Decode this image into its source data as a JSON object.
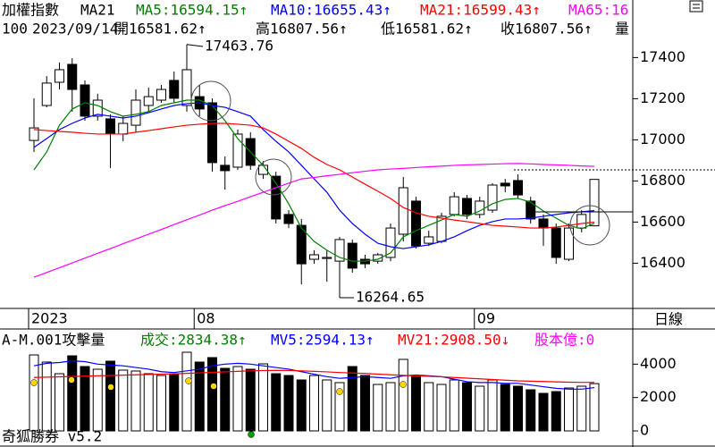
{
  "header": {
    "footer": "奇狐勝券 v5.2",
    "period": "日線"
  },
  "chart_data": [
    {
      "type": "candlestick",
      "title": "加權指數",
      "indicator": "MA21",
      "info": [
        "100",
        "2023/09/14",
        "開16581.62↑",
        "高16807.56↑",
        "低16581.62↑",
        "收16807.56↑",
        "量"
      ],
      "categories": [
        "2023",
        null,
        null,
        null,
        null,
        null,
        null,
        null,
        null,
        null,
        null,
        null,
        null,
        "08",
        null,
        null,
        null,
        null,
        null,
        null,
        null,
        null,
        null,
        null,
        null,
        null,
        null,
        null,
        null,
        null,
        null,
        null,
        null,
        null,
        null,
        "09",
        null,
        null,
        null,
        null,
        null,
        null,
        null,
        null,
        null
      ],
      "open": [
        16997,
        17167,
        17280,
        17367,
        17267,
        17115,
        17102,
        17028,
        17071,
        17167,
        17193,
        17289,
        17167,
        17210,
        17180,
        16876,
        16867,
        17006,
        16832,
        16823,
        16637,
        16584,
        16419,
        16423,
        16410,
        16497,
        16419,
        16410,
        16428,
        16541,
        16702,
        16497,
        16506,
        16637,
        16715,
        16637,
        16658,
        16789,
        16802,
        16702,
        16615,
        16571,
        16419,
        16571,
        16581.62
      ],
      "high": [
        17202,
        17310,
        17376,
        17397,
        17289,
        17224,
        17124,
        17115,
        17245,
        17254,
        17267,
        17332,
        17463.76,
        17267,
        17202,
        16919,
        17050,
        17037,
        16897,
        16845,
        16658,
        16615,
        16463,
        16463,
        16528,
        16515,
        16441,
        16450,
        16593,
        16819,
        16723,
        16558,
        16645,
        16745,
        16732,
        16723,
        16789,
        16810,
        16832,
        16723,
        16637,
        16593,
        16593,
        16658,
        16807.56
      ],
      "low": [
        16941,
        17158,
        17245,
        17137,
        17093,
        17093,
        16863,
        16993,
        17037,
        17137,
        17180,
        17180,
        17137,
        17115,
        16845,
        16758,
        16854,
        16854,
        16810,
        16593,
        16571,
        16297,
        16397,
        16310,
        16264.65,
        16354,
        16376,
        16397,
        16410,
        16506,
        16471,
        16484,
        16497,
        16628,
        16615,
        16619,
        16645,
        16745,
        16715,
        16593,
        16484,
        16397,
        16410,
        16550,
        16581.62
      ],
      "close": [
        17058,
        17276,
        17341,
        17245,
        17115,
        17193,
        17028,
        17080,
        17193,
        17210,
        17245,
        17202,
        17341,
        17150,
        16889,
        16850,
        17028,
        16876,
        16876,
        16615,
        16593,
        16397,
        16441,
        16428,
        16515,
        16376,
        16397,
        16441,
        16571,
        16767,
        16484,
        16528,
        16628,
        16723,
        16637,
        16702,
        16780,
        16776,
        16732,
        16615,
        16571,
        16428,
        16571,
        16637,
        16807.56
      ],
      "series": [
        {
          "name": "MA5:16594.15↑",
          "color": "#008000",
          "values": [
            16854,
            16941,
            17071,
            17150,
            17180,
            17167,
            17137,
            17115,
            17124,
            17137,
            17167,
            17180,
            17193,
            17193,
            17167,
            17093,
            17006,
            16941,
            16876,
            16789,
            16689,
            16571,
            16506,
            16463,
            16428,
            16410,
            16410,
            16419,
            16450,
            16528,
            16558,
            16584,
            16610,
            16637,
            16628,
            16654,
            16689,
            16710,
            16715,
            16697,
            16654,
            16619,
            16584,
            16567,
            16594.15
          ]
        },
        {
          "name": "MA10:16655.43↑",
          "color": "#0000ff",
          "values": [
            16963,
            17006,
            17050,
            17080,
            17106,
            17124,
            17115,
            17106,
            17115,
            17132,
            17150,
            17167,
            17176,
            17180,
            17167,
            17158,
            17137,
            17115,
            17050,
            16993,
            16941,
            16876,
            16810,
            16745,
            16658,
            16593,
            16541,
            16497,
            16480,
            16471,
            16480,
            16489,
            16506,
            16528,
            16558,
            16584,
            16602,
            16615,
            16615,
            16619,
            16628,
            16637,
            16645,
            16650,
            16655.43
          ]
        },
        {
          "name": "MA21:16599.43↑",
          "color": "#ff0000",
          "values": [
            17050,
            17045,
            17041,
            17037,
            17032,
            17028,
            17028,
            17028,
            17037,
            17045,
            17054,
            17063,
            17071,
            17076,
            17080,
            17080,
            17076,
            17071,
            17058,
            17028,
            16993,
            16958,
            16915,
            16880,
            16854,
            16819,
            16784,
            16750,
            16715,
            16671,
            16645,
            16628,
            16619,
            16610,
            16602,
            16593,
            16584,
            16580,
            16576,
            16571,
            16571,
            16576,
            16584,
            16593,
            16599.43
          ]
        },
        {
          "name": "MA65:16",
          "color": "#ff00ff",
          "values": [
            16332,
            16355,
            16378,
            16401,
            16425,
            16448,
            16471,
            16495,
            16518,
            16541,
            16564,
            16588,
            16611,
            16634,
            16658,
            16680,
            16701,
            16723,
            16745,
            16767,
            16789,
            16810,
            16817,
            16825,
            16832,
            16840,
            16847,
            16854,
            16858,
            16861,
            16865,
            16869,
            16872,
            16876,
            16878,
            16880,
            16882,
            16884,
            16885,
            16883,
            16880,
            16878,
            16876,
            16873,
            16871
          ]
        }
      ],
      "annotations": [
        "17463.76",
        "16264.65"
      ],
      "ylim": [
        16180,
        17680
      ],
      "yticks": [
        16400,
        16600,
        16800,
        17000,
        17200,
        17400
      ]
    },
    {
      "type": "bar",
      "title": "A-M.001攻擊量",
      "note": "股本億:0",
      "series": [
        {
          "name": "成交:2834.38↑",
          "color": "#008000",
          "values": [
            4553,
            4125,
            3428,
            4500,
            3857,
            3696,
            4178,
            3643,
            3589,
            3428,
            3321,
            3428,
            4714,
            4125,
            4393,
            3750,
            3857,
            3696,
            4018,
            3428,
            3321,
            3054,
            3321,
            3054,
            2893,
            3857,
            3321,
            2786,
            2893,
            4286,
            3321,
            2893,
            2786,
            3054,
            2893,
            2679,
            3054,
            2786,
            2679,
            2464,
            2250,
            2357,
            2571,
            2679,
            2834.38
          ]
        },
        {
          "name": "MV5:2594.13↑",
          "color": "#0000ff",
          "values": [
            3900,
            4050,
            4100,
            4200,
            4150,
            4000,
            3950,
            3900,
            3800,
            3700,
            3550,
            3500,
            3600,
            3700,
            3900,
            4000,
            4050,
            4000,
            3900,
            3800,
            3700,
            3550,
            3400,
            3250,
            3150,
            3200,
            3250,
            3200,
            3150,
            3300,
            3350,
            3300,
            3250,
            3100,
            2950,
            2900,
            2900,
            2850,
            2850,
            2750,
            2650,
            2550,
            2500,
            2500,
            2594.13
          ]
        },
        {
          "name": "MV21:2908.50↓",
          "color": "#ff0000",
          "values": [
            3200,
            3220,
            3240,
            3260,
            3280,
            3300,
            3320,
            3340,
            3360,
            3380,
            3400,
            3420,
            3450,
            3480,
            3510,
            3540,
            3570,
            3600,
            3620,
            3630,
            3620,
            3600,
            3570,
            3540,
            3500,
            3470,
            3440,
            3400,
            3360,
            3330,
            3300,
            3270,
            3240,
            3200,
            3160,
            3120,
            3080,
            3040,
            3000,
            2980,
            2960,
            2940,
            2920,
            2910,
            2908.5
          ]
        }
      ],
      "ylim": [
        0,
        6000
      ],
      "yticks": [
        0,
        2000,
        4000
      ]
    }
  ]
}
